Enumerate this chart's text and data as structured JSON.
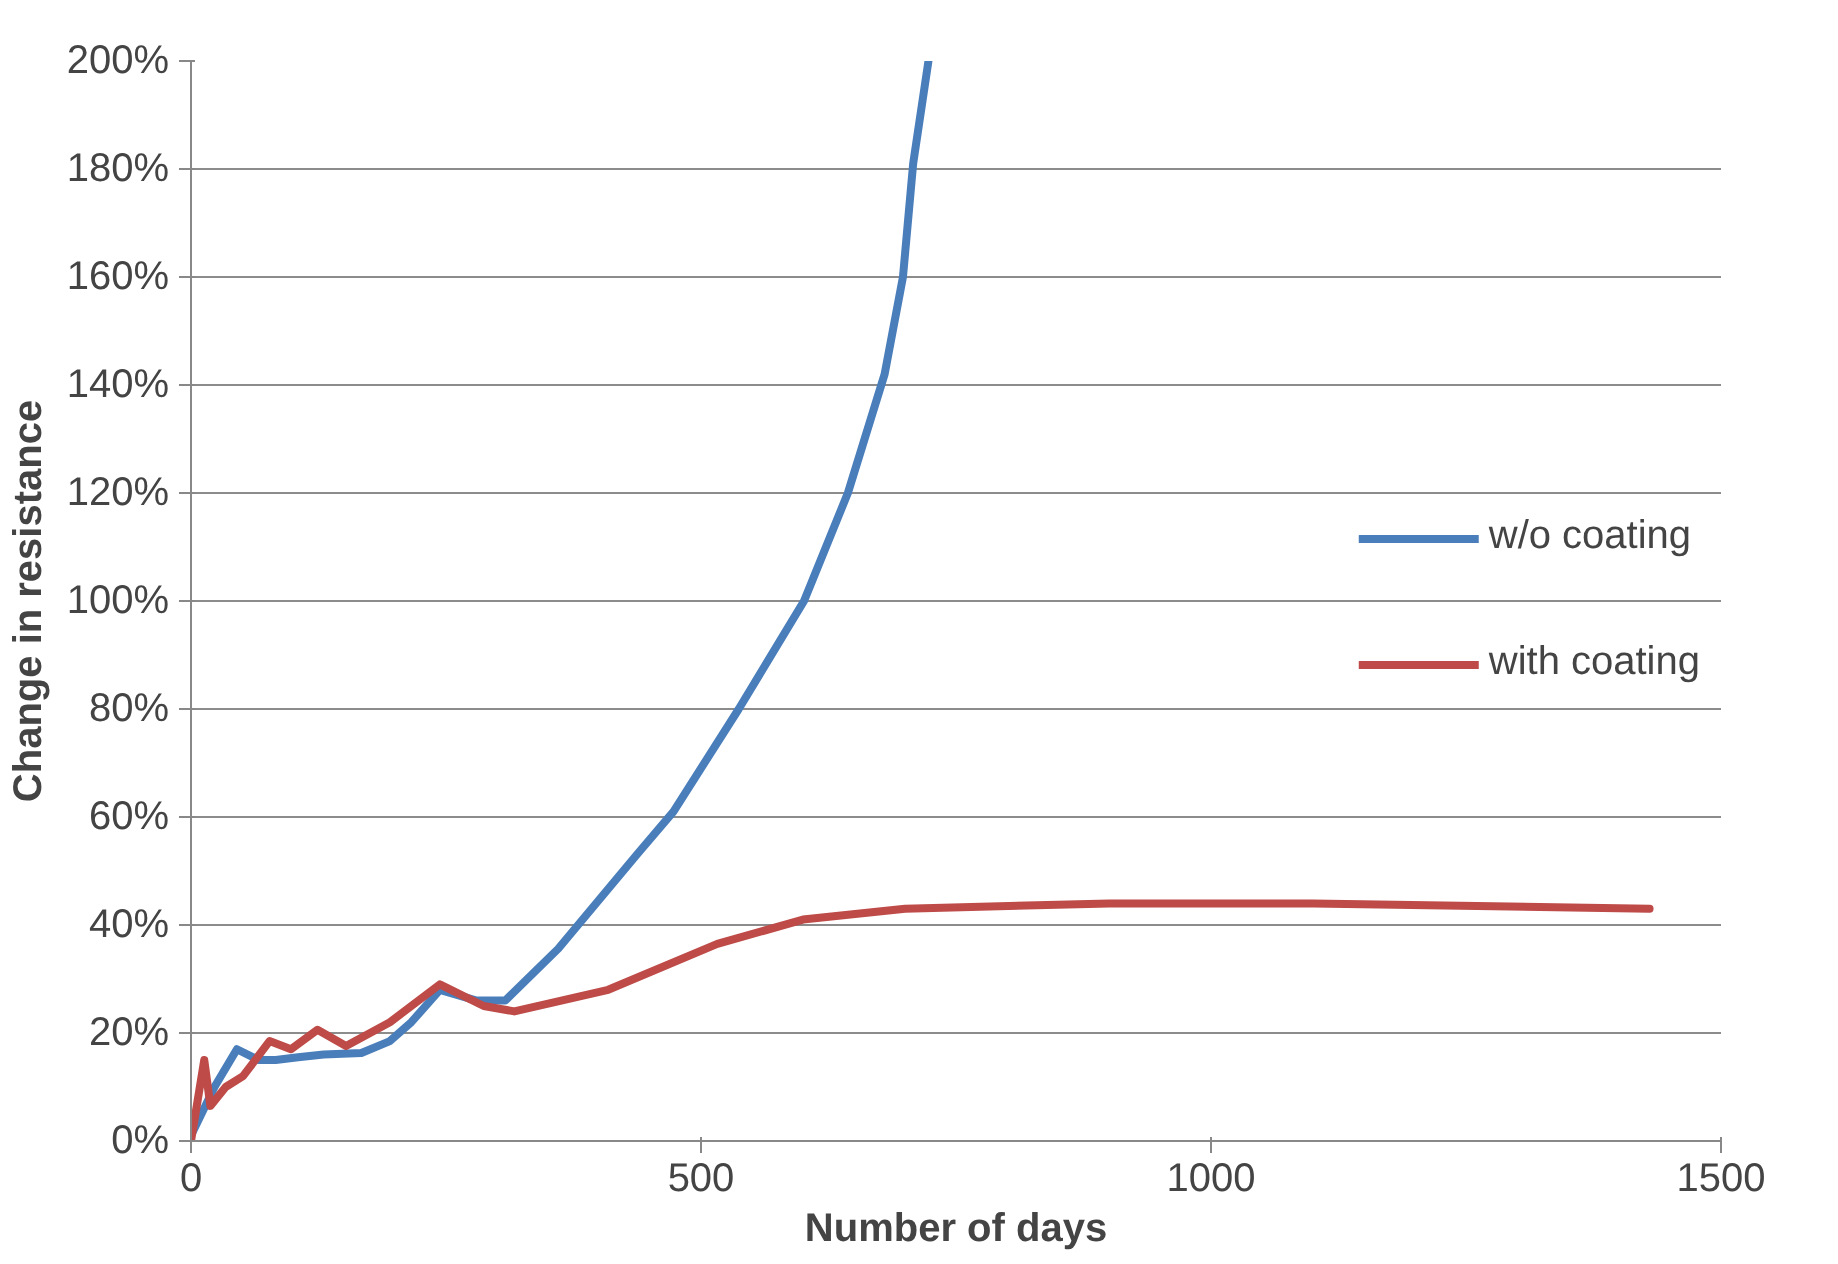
{
  "chart_data": {
    "type": "line",
    "xlabel": "Number of days",
    "ylabel": "Change in resistance",
    "xlim": [
      0,
      1500
    ],
    "xticks": [
      0,
      500,
      1000,
      1500
    ],
    "ylim": [
      0,
      200
    ],
    "yticks": [
      {
        "value": 0,
        "label": "0%"
      },
      {
        "value": 20,
        "label": "20%"
      },
      {
        "value": 40,
        "label": "40%"
      },
      {
        "value": 60,
        "label": "60%"
      },
      {
        "value": 80,
        "label": "80%"
      },
      {
        "value": 100,
        "label": "100%"
      },
      {
        "value": 120,
        "label": "120%"
      },
      {
        "value": 140,
        "label": "140%"
      },
      {
        "value": 160,
        "label": "160%"
      },
      {
        "value": 180,
        "label": "180%"
      },
      {
        "value": 200,
        "label": "200%"
      }
    ],
    "grid": "y",
    "legend": "right",
    "marker": "none",
    "line_style": "solid",
    "series": [
      {
        "name": "w/o coating",
        "color": "#4a7ebb",
        "x": [
          0,
          23,
          45,
          66,
          83,
          105,
          130,
          167,
          195,
          216,
          244,
          280,
          308,
          360,
          437,
          473,
          537,
          601,
          644,
          680,
          698,
          708,
          723
        ],
        "values": [
          1,
          10,
          17,
          15,
          15,
          15.5,
          16,
          16.3,
          18.5,
          22,
          28,
          26,
          26,
          35.6,
          53,
          61,
          80,
          100,
          120,
          142,
          160,
          181,
          200
        ]
      },
      {
        "name": "with coating",
        "color": "#be4b48",
        "x": [
          0,
          13,
          19,
          34,
          51,
          77,
          98,
          124,
          152,
          195,
          244,
          287,
          317,
          409,
          516,
          600,
          700,
          900,
          1100,
          1430
        ],
        "values": [
          0,
          15,
          6.5,
          10,
          12,
          18.5,
          17,
          20.6,
          17.6,
          22,
          29,
          25,
          24,
          28,
          36.5,
          41,
          43,
          44,
          44,
          43
        ]
      }
    ]
  }
}
